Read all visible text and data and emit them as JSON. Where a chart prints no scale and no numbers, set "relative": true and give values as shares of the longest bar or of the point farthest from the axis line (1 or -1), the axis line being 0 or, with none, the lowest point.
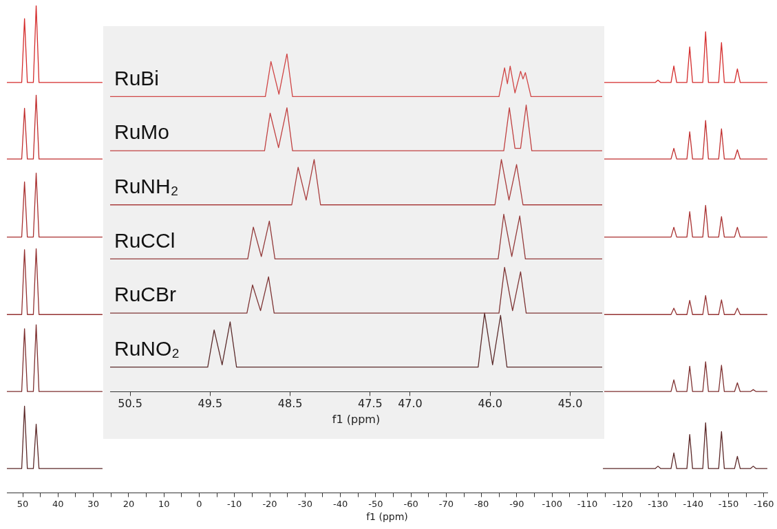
{
  "chart_data": [
    {
      "type": "line",
      "relative": true,
      "xlabel": "f1 (ppm)",
      "xlim": [
        54.5,
        -161
      ],
      "tick_labels": "x",
      "grid": false,
      "marker": "none",
      "xticks": [
        50,
        {
          "value": 45,
          "label": null
        },
        40,
        {
          "value": 35,
          "label": null
        },
        30,
        {
          "value": 25,
          "label": null
        },
        20,
        {
          "value": 15,
          "label": null
        },
        10,
        {
          "value": 5,
          "label": null
        },
        0,
        {
          "value": -5,
          "label": null
        },
        -10,
        {
          "value": -15,
          "label": null
        },
        -20,
        {
          "value": -25,
          "label": null
        },
        -30,
        {
          "value": -35,
          "label": null
        },
        -40,
        {
          "value": -45,
          "label": null
        },
        -50,
        {
          "value": -55,
          "label": null
        },
        -60,
        {
          "value": -65,
          "label": null
        },
        -70,
        {
          "value": -75,
          "label": null
        },
        -80,
        {
          "value": -85,
          "label": null
        },
        -90,
        {
          "value": -95,
          "label": null
        },
        -100,
        {
          "value": -105,
          "label": null
        },
        -110,
        {
          "value": -115,
          "label": null
        },
        -120,
        {
          "value": -125,
          "label": null
        },
        -130,
        {
          "value": -135,
          "label": null
        },
        -140,
        {
          "value": -145,
          "label": null
        },
        -150,
        {
          "value": -155,
          "label": null
        },
        -160
      ],
      "x": [
        54.5,
        50.3,
        49.5,
        48.7,
        47.0,
        46.2,
        45.4,
        27.5,
        -40,
        -114.5,
        -129.2,
        -130,
        -130.8,
        -133.7,
        -134.5,
        -135.3,
        -138.2,
        -139,
        -139.8,
        -142.7,
        -143.5,
        -144.3,
        -147.2,
        -148,
        -148.8,
        -151.7,
        -152.5,
        -153.3,
        -156.2,
        -157,
        -157.8,
        -161
      ],
      "series": [
        {
          "color": "#d42a2a",
          "values": [
            0.842,
            0.842,
            0.973,
            0.842,
            0.842,
            1.0,
            0.842,
            0.842,
            null,
            0.842,
            0.842,
            0.847,
            0.842,
            0.842,
            0.876,
            0.842,
            0.842,
            0.915,
            0.842,
            0.842,
            0.946,
            0.842,
            0.842,
            0.924,
            0.842,
            0.842,
            0.87,
            0.842,
            0.842,
            0.842,
            0.842,
            0.842
          ]
        },
        {
          "color": "#c02c2c",
          "values": [
            0.685,
            0.685,
            0.789,
            0.685,
            0.685,
            0.816,
            0.685,
            0.685,
            null,
            0.685,
            0.685,
            0.685,
            0.685,
            0.685,
            0.707,
            0.685,
            0.685,
            0.741,
            0.685,
            0.685,
            0.764,
            0.685,
            0.685,
            0.747,
            0.685,
            0.685,
            0.704,
            0.685,
            0.685,
            0.685,
            0.685,
            0.685
          ]
        },
        {
          "color": "#a82f2f",
          "values": [
            0.525,
            0.525,
            0.638,
            0.525,
            0.525,
            0.656,
            0.525,
            0.525,
            null,
            0.525,
            0.525,
            0.525,
            0.525,
            0.525,
            0.545,
            0.525,
            0.525,
            0.577,
            0.525,
            0.525,
            0.59,
            0.525,
            0.525,
            0.567,
            0.525,
            0.525,
            0.545,
            0.525,
            0.525,
            0.525,
            0.525,
            0.525
          ]
        },
        {
          "color": "#933030",
          "values": [
            0.366,
            0.366,
            0.499,
            0.366,
            0.366,
            0.501,
            0.366,
            0.366,
            null,
            0.366,
            0.366,
            0.366,
            0.366,
            0.366,
            0.379,
            0.366,
            0.366,
            0.395,
            0.366,
            0.366,
            0.405,
            0.366,
            0.366,
            0.396,
            0.366,
            0.366,
            0.379,
            0.366,
            0.366,
            0.366,
            0.366,
            0.366
          ]
        },
        {
          "color": "#7d2e2e",
          "values": [
            0.208,
            0.208,
            0.337,
            0.208,
            0.208,
            0.345,
            0.208,
            0.208,
            null,
            0.208,
            0.208,
            0.208,
            0.208,
            0.208,
            0.232,
            0.208,
            0.208,
            0.26,
            0.208,
            0.208,
            0.269,
            0.208,
            0.208,
            0.262,
            0.208,
            0.208,
            0.226,
            0.208,
            0.208,
            0.212,
            0.208,
            0.208
          ]
        },
        {
          "color": "#5a2626",
          "values": [
            0.05,
            0.05,
            0.178,
            0.05,
            0.05,
            0.141,
            0.05,
            0.05,
            null,
            0.05,
            0.05,
            0.055,
            0.05,
            0.05,
            0.082,
            0.05,
            0.05,
            0.12,
            0.05,
            0.05,
            0.144,
            0.05,
            0.05,
            0.126,
            0.05,
            0.05,
            0.075,
            0.05,
            0.05,
            0.055,
            0.05,
            0.05
          ]
        }
      ]
    },
    {
      "type": "line",
      "relative": true,
      "xlabel": "f1 (ppm)",
      "xlim": [
        50.75,
        44.6
      ],
      "tick_labels": "x",
      "grid": false,
      "marker": "none",
      "xticks": [
        50.5,
        49.5,
        48.5,
        47.5,
        {
          "value": 47,
          "label": "47.0"
        },
        {
          "value": 46,
          "label": "46.0"
        },
        {
          "value": 45,
          "label": "45.0"
        }
      ],
      "series": [
        {
          "name": "RuBi",
          "color": "#d04545",
          "x": [
            50.75,
            48.81,
            48.74,
            48.64,
            48.54,
            48.47,
            45.89,
            45.82,
            45.785,
            45.75,
            45.69,
            45.62,
            45.59,
            45.56,
            45.49,
            44.6
          ],
          "values": [
            0.873,
            0.873,
            0.977,
            0.88,
            1.0,
            0.873,
            0.873,
            0.958,
            0.911,
            0.963,
            0.884,
            0.948,
            0.925,
            0.944,
            0.873,
            0.873
          ]
        },
        {
          "name": "RuMo",
          "color": "#c04040",
          "x": [
            50.75,
            48.82,
            48.75,
            48.645,
            48.54,
            48.47,
            45.83,
            45.76,
            45.69,
            45.62,
            45.55,
            45.48,
            44.6
          ],
          "values": [
            0.713,
            0.713,
            0.824,
            0.722,
            0.84,
            0.713,
            0.713,
            0.84,
            0.72,
            0.72,
            0.848,
            0.713,
            0.713
          ]
        },
        {
          "name": "RuNH₂",
          "color": "#a83c3c",
          "x": [
            50.75,
            48.48,
            48.4,
            48.3,
            48.2,
            48.12,
            45.94,
            45.86,
            45.765,
            45.67,
            45.59,
            44.6
          ],
          "values": [
            0.553,
            0.553,
            0.664,
            0.567,
            0.687,
            0.553,
            0.553,
            0.687,
            0.567,
            0.672,
            0.553,
            0.553
          ]
        },
        {
          "name": "RuCCl",
          "color": "#933a3a",
          "x": [
            50.75,
            49.03,
            48.96,
            48.86,
            48.76,
            48.69,
            45.9,
            45.83,
            45.73,
            45.63,
            45.56,
            44.6
          ],
          "values": [
            0.393,
            0.393,
            0.487,
            0.4,
            0.505,
            0.393,
            0.393,
            0.525,
            0.4,
            0.52,
            0.393,
            0.393
          ]
        },
        {
          "name": "RuCBr",
          "color": "#7d3434",
          "x": [
            50.75,
            49.04,
            48.97,
            48.87,
            48.77,
            48.7,
            45.89,
            45.82,
            45.72,
            45.62,
            45.55,
            44.6
          ],
          "values": [
            0.233,
            0.233,
            0.316,
            0.24,
            0.34,
            0.233,
            0.233,
            0.368,
            0.24,
            0.355,
            0.233,
            0.233
          ]
        },
        {
          "name": "RuNO₂",
          "color": "#5a2a2a",
          "x": [
            50.75,
            49.53,
            49.45,
            49.35,
            49.25,
            49.17,
            46.15,
            46.07,
            45.97,
            45.87,
            45.79,
            44.6
          ],
          "values": [
            0.073,
            0.073,
            0.183,
            0.08,
            0.207,
            0.073,
            0.073,
            0.233,
            0.08,
            0.226,
            0.073,
            0.073
          ]
        }
      ]
    }
  ]
}
